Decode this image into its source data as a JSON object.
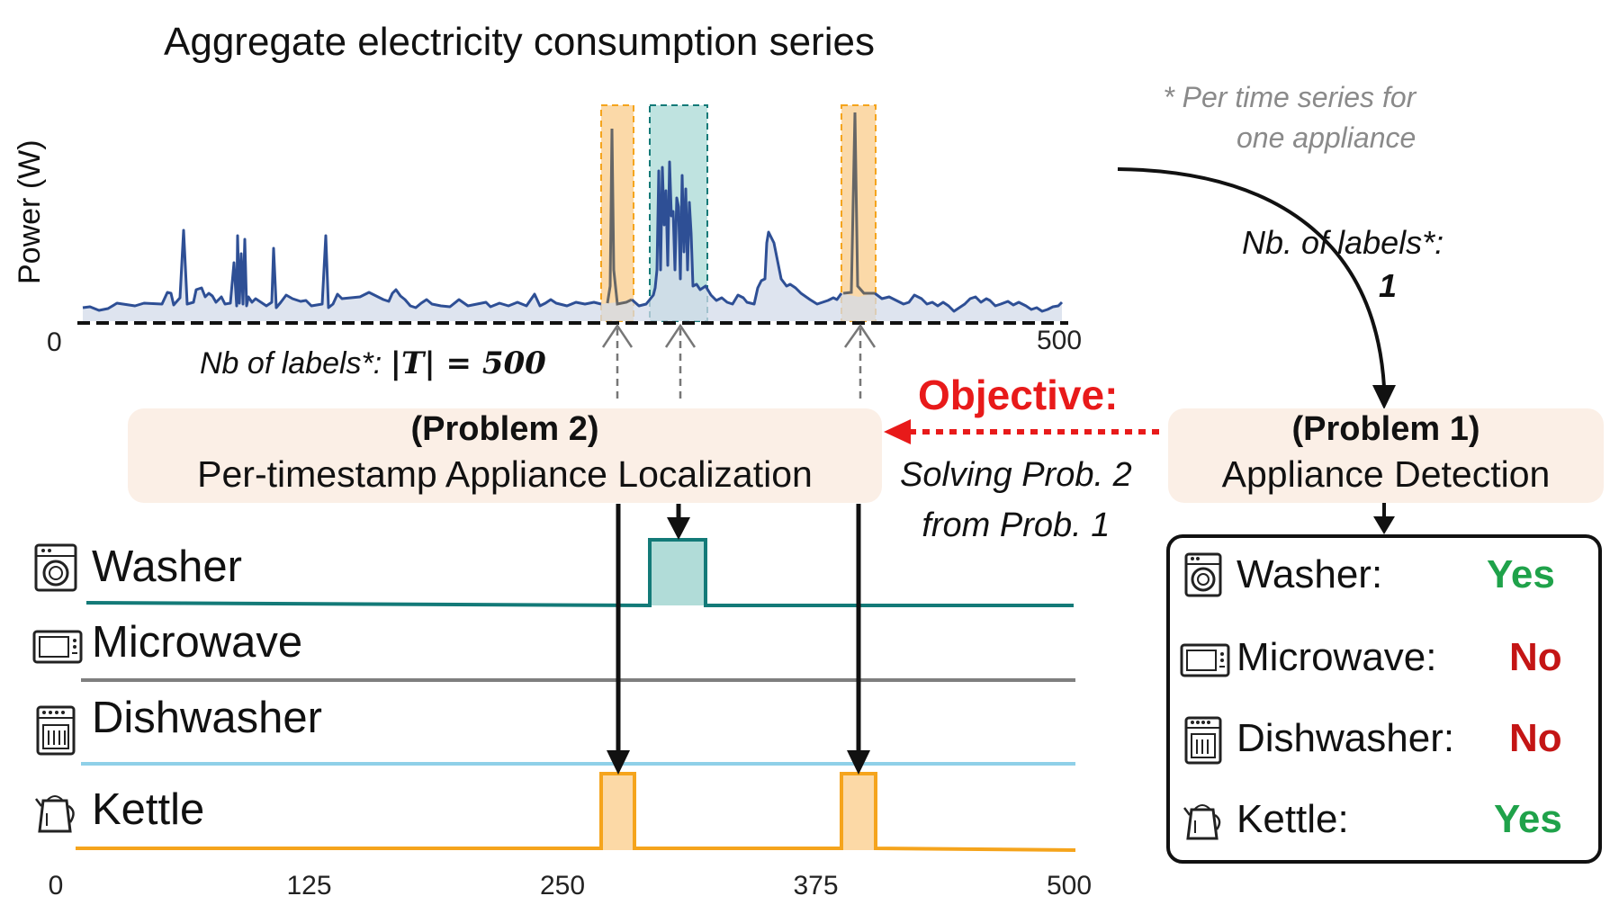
{
  "title": "Aggregate electricity consumption series",
  "ylabel": "Power (W)",
  "top_axis": {
    "start": "0",
    "end": "500"
  },
  "note": {
    "line1": "* Per time series for",
    "line2": "one appliance"
  },
  "nb_right": {
    "line1": "Nb. of labels*:",
    "line2": "1"
  },
  "nb_left": {
    "prefix": "Nb of labels*: ",
    "math": "|T| = 500"
  },
  "problem2": {
    "title": "(Problem 2)",
    "subtitle": "Per-timestamp Appliance Localization"
  },
  "problem1": {
    "title": "(Problem 1)",
    "subtitle": "Appliance Detection"
  },
  "objective": {
    "label": "Objective:",
    "line1": "Solving Prob. 2",
    "line2": "from Prob. 1"
  },
  "appliances": [
    {
      "name": "Washer",
      "color": "#137a78",
      "icon": "washer-icon"
    },
    {
      "name": "Microwave",
      "color": "#7f7f7f",
      "icon": "microwave-icon"
    },
    {
      "name": "Dishwasher",
      "color": "#8fd0e8",
      "icon": "dishwasher-icon"
    },
    {
      "name": "Kettle",
      "color": "#f5a41c",
      "icon": "kettle-icon"
    }
  ],
  "detection": [
    {
      "label": "Washer:",
      "answer": "Yes"
    },
    {
      "label": "Microwave:",
      "answer": "No"
    },
    {
      "label": "Dishwasher:",
      "answer": "No"
    },
    {
      "label": "Kettle:",
      "answer": "Yes"
    }
  ],
  "bottom_axis": {
    "ticks": [
      "0",
      "125",
      "250",
      "375",
      "500"
    ],
    "values": [
      0,
      125,
      250,
      375,
      500
    ]
  },
  "colors": {
    "aggregate_line": "#2e4f95",
    "aggregate_fill": "#d3dbe9",
    "kettle_highlight": "#fbd9a8",
    "washer_highlight": "#bfe3e0",
    "objective_arrow": "#e81a1a",
    "yes": "#1fa24a",
    "no": "#c41515"
  },
  "chart_data": {
    "type": "line",
    "x_range": [
      0,
      500
    ],
    "washer_on": [
      [
        290,
        318
      ]
    ],
    "kettle_on": [
      [
        265,
        282
      ],
      [
        387,
        405
      ]
    ]
  }
}
